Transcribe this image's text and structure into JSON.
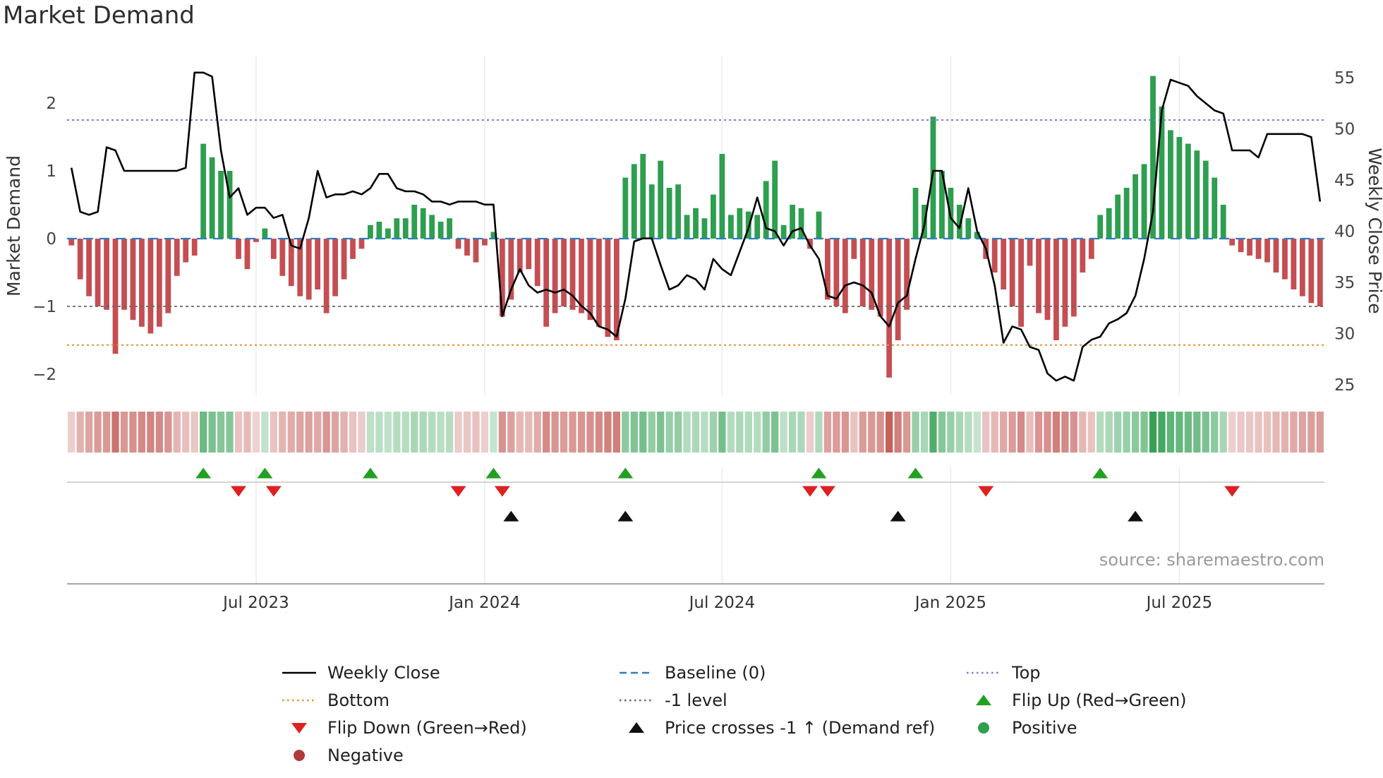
{
  "title": "Market Demand",
  "source_note": "source: sharemaestro.com",
  "axes": {
    "left_label": "Market Demand",
    "right_label": "Weekly Close Price",
    "left_ticks": [
      2,
      1,
      0,
      -1,
      -2
    ],
    "right_ticks": [
      55,
      50,
      45,
      40,
      35,
      30,
      25
    ],
    "x_ticks": [
      {
        "label": "Jul 2023",
        "index": 21
      },
      {
        "label": "Jan 2024",
        "index": 47
      },
      {
        "label": "Jul 2024",
        "index": 74
      },
      {
        "label": "Jan 2025",
        "index": 100
      },
      {
        "label": "Jul 2025",
        "index": 126
      }
    ]
  },
  "chart_data": {
    "type": "bar",
    "subtype": "weekly demand bars with overlaid price line, heatmap strip and event markers",
    "ylim_left": [
      -2.3,
      2.6
    ],
    "ylim_right": [
      25,
      55
    ],
    "series": [
      {
        "name": "Market Demand",
        "type": "bar",
        "axis": "left",
        "values": [
          -0.1,
          -0.6,
          -0.85,
          -1.0,
          -1.05,
          -1.7,
          -1.05,
          -1.2,
          -1.3,
          -1.4,
          -1.3,
          -1.1,
          -0.55,
          -0.35,
          -0.25,
          1.4,
          1.2,
          1.0,
          1.0,
          -0.3,
          -0.45,
          -0.05,
          0.15,
          -0.3,
          -0.55,
          -0.7,
          -0.85,
          -0.9,
          -0.75,
          -1.1,
          -0.85,
          -0.6,
          -0.3,
          -0.15,
          0.2,
          0.25,
          0.15,
          0.3,
          0.3,
          0.5,
          0.45,
          0.35,
          0.25,
          0.3,
          -0.15,
          -0.25,
          -0.35,
          -0.1,
          0.1,
          -1.15,
          -0.9,
          -0.5,
          -0.45,
          -0.7,
          -1.3,
          -1.1,
          -1.0,
          -1.05,
          -1.1,
          -1.2,
          -1.3,
          -1.45,
          -1.5,
          0.9,
          1.1,
          1.25,
          0.8,
          1.15,
          0.75,
          0.8,
          0.35,
          0.45,
          0.3,
          0.65,
          1.25,
          0.35,
          0.45,
          0.4,
          0.35,
          0.85,
          1.15,
          0.2,
          0.5,
          0.45,
          -0.15,
          0.4,
          -0.9,
          -1.0,
          -1.1,
          -0.3,
          -1.0,
          -1.05,
          -1.15,
          -2.05,
          -1.5,
          -1.05,
          0.75,
          0.5,
          1.8,
          1.0,
          0.75,
          0.5,
          0.3,
          0.1,
          -0.3,
          -0.5,
          -0.75,
          -1.0,
          -1.3,
          -0.4,
          -1.1,
          -1.2,
          -1.5,
          -1.3,
          -1.15,
          -0.5,
          -0.3,
          0.35,
          0.45,
          0.65,
          0.75,
          0.95,
          1.1,
          2.4,
          1.95,
          1.6,
          1.5,
          1.4,
          1.3,
          1.15,
          0.9,
          0.5,
          -0.1,
          -0.2,
          -0.25,
          -0.3,
          -0.35,
          -0.5,
          -0.6,
          -0.75,
          -0.85,
          -0.95,
          -1.0
        ]
      },
      {
        "name": "Weekly Close",
        "type": "line",
        "axis": "right",
        "values": [
          46.2,
          41.9,
          41.6,
          41.9,
          48.2,
          47.9,
          45.9,
          45.9,
          45.9,
          45.9,
          45.9,
          45.9,
          45.9,
          46.2,
          55.5,
          55.5,
          55.1,
          47.9,
          43.3,
          44.2,
          41.6,
          42.3,
          42.3,
          41.3,
          41.6,
          38.6,
          38.3,
          41.3,
          45.9,
          43.3,
          43.6,
          43.6,
          43.9,
          43.6,
          44.2,
          45.6,
          45.6,
          44.2,
          43.9,
          43.9,
          43.6,
          42.9,
          42.9,
          42.6,
          42.9,
          42.9,
          42.9,
          42.6,
          42.6,
          31.7,
          34.3,
          36.3,
          34.7,
          34.0,
          34.3,
          34.0,
          34.3,
          33.7,
          32.7,
          32.0,
          30.7,
          30.4,
          29.7,
          33.4,
          39.0,
          39.3,
          39.3,
          36.7,
          34.3,
          34.7,
          35.7,
          35.3,
          34.3,
          37.3,
          36.3,
          35.7,
          38.0,
          40.3,
          43.3,
          40.3,
          40.0,
          38.6,
          40.0,
          40.3,
          38.6,
          37.3,
          33.7,
          33.4,
          34.7,
          35.0,
          34.7,
          34.0,
          31.7,
          30.7,
          33.0,
          33.7,
          37.3,
          40.6,
          45.9,
          45.9,
          41.3,
          40.3,
          44.2,
          40.0,
          38.3,
          34.7,
          29.1,
          30.7,
          30.4,
          28.7,
          28.4,
          26.1,
          25.4,
          25.8,
          25.4,
          28.7,
          29.4,
          29.7,
          31.0,
          31.4,
          32.0,
          33.7,
          37.3,
          41.9,
          51.8,
          54.8,
          54.5,
          54.2,
          53.2,
          52.5,
          51.8,
          51.5,
          47.9,
          47.9,
          47.9,
          47.2,
          49.5,
          49.5,
          49.5,
          49.5,
          49.5,
          49.2,
          42.9
        ]
      }
    ],
    "reference_lines": [
      {
        "name": "Top",
        "value": 1.75
      },
      {
        "name": "Baseline (0)",
        "value": 0
      },
      {
        "name": "-1 level",
        "value": -1
      },
      {
        "name": "Bottom",
        "value": -1.57
      }
    ],
    "markers": {
      "flip_up": [
        15,
        22,
        34,
        48,
        63,
        85,
        96,
        117
      ],
      "flip_down": [
        19,
        23,
        44,
        49,
        84,
        86,
        104,
        132
      ],
      "price_cross_minus1": [
        50,
        63,
        94,
        121
      ]
    }
  },
  "legend": [
    {
      "label": "Weekly Close",
      "swatch": "line",
      "color": "#000000",
      "dash": "solid"
    },
    {
      "label": "Baseline (0)",
      "swatch": "line",
      "color": "#2e7ebf",
      "dash": "dashed"
    },
    {
      "label": "Top",
      "swatch": "line",
      "color": "#7b7bdc",
      "dash": "dotted"
    },
    {
      "label": "Bottom",
      "swatch": "line",
      "color": "#ef8e2e",
      "dash": "dotted"
    },
    {
      "label": "-1 level",
      "swatch": "line",
      "color": "#666666",
      "dash": "dotted"
    },
    {
      "label": "Flip Up (Red→Green)",
      "swatch": "triangle-up",
      "color": "#21a121"
    },
    {
      "label": "Flip Down (Green→Red)",
      "swatch": "triangle-down",
      "color": "#e02020"
    },
    {
      "label": "Price crosses -1 ↑ (Demand ref)",
      "swatch": "triangle-up",
      "color": "#111111"
    },
    {
      "label": "Positive",
      "swatch": "circle",
      "color": "#2e9e4f"
    },
    {
      "label": "Negative",
      "swatch": "circle",
      "color": "#b03a3a"
    }
  ],
  "colors": {
    "positive_bar": "#2e9e4f",
    "negative_bar": "#c44e52",
    "price_line": "#000000",
    "baseline": "#2e7ebf",
    "top_line": "#7b7bdc",
    "bottom_line": "#ef8e2e",
    "minus_one_line": "#666666",
    "flip_up": "#21a121",
    "flip_down": "#e02020",
    "price_cross": "#111111"
  }
}
